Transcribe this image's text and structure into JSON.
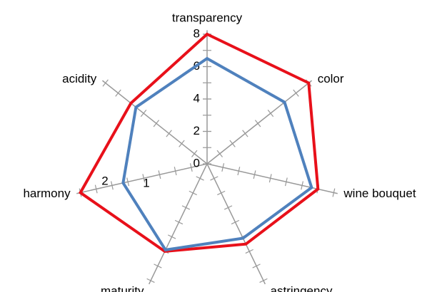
{
  "chart_data": {
    "type": "radar",
    "categories": [
      "transparency",
      "color",
      "wine bouquet",
      "astringency",
      "maturity",
      "harmony",
      "acidity"
    ],
    "series": [
      {
        "color": "#e8101a",
        "values": [
          8,
          8,
          7,
          5.5,
          6,
          8,
          6
        ]
      },
      {
        "color": "#4f81bd",
        "values": [
          6.5,
          6.1,
          6.6,
          5.1,
          5.9,
          5.3,
          5.6
        ]
      }
    ],
    "ylim": [
      0,
      8
    ],
    "yticks": [
      0,
      2,
      4,
      6,
      8
    ],
    "annotations": [
      "2",
      "1"
    ]
  }
}
